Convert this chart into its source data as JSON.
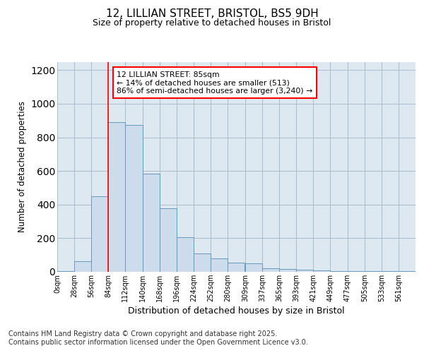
{
  "title_line1": "12, LILLIAN STREET, BRISTOL, BS5 9DH",
  "title_line2": "Size of property relative to detached houses in Bristol",
  "xlabel": "Distribution of detached houses by size in Bristol",
  "ylabel": "Number of detached properties",
  "bin_labels": [
    "0sqm",
    "28sqm",
    "56sqm",
    "84sqm",
    "112sqm",
    "140sqm",
    "168sqm",
    "196sqm",
    "224sqm",
    "252sqm",
    "280sqm",
    "309sqm",
    "337sqm",
    "365sqm",
    "393sqm",
    "421sqm",
    "449sqm",
    "477sqm",
    "505sqm",
    "533sqm",
    "561sqm"
  ],
  "bin_edges": [
    0,
    28,
    56,
    84,
    112,
    140,
    168,
    196,
    224,
    252,
    280,
    309,
    337,
    365,
    393,
    421,
    449,
    477,
    505,
    533,
    561
  ],
  "bar_heights": [
    5,
    65,
    450,
    890,
    875,
    585,
    380,
    205,
    110,
    80,
    55,
    50,
    20,
    15,
    12,
    10,
    5,
    5,
    5,
    5,
    5
  ],
  "bar_color": "#ccdcec",
  "bar_edge_color": "#6699bb",
  "grid_color": "#aabbcc",
  "background_color": "#dde8f0",
  "red_line_x": 84,
  "annotation_text_line1": "12 LILLIAN STREET: 85sqm",
  "annotation_text_line2": "← 14% of detached houses are smaller (513)",
  "annotation_text_line3": "86% of semi-detached houses are larger (3,240) →",
  "footer_text": "Contains HM Land Registry data © Crown copyright and database right 2025.\nContains public sector information licensed under the Open Government Licence v3.0.",
  "ylim": [
    0,
    1250
  ],
  "yticks": [
    0,
    200,
    400,
    600,
    800,
    1000,
    1200
  ],
  "fig_background": "#ffffff"
}
